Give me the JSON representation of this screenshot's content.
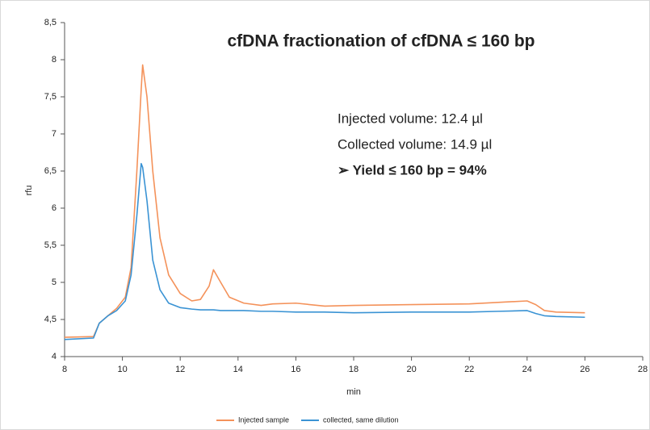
{
  "chart_data": {
    "type": "line",
    "title": "cfDNA fractionation of cfDNA ≤ 160 bp",
    "annotations": [
      "Injected volume: 12.4 µl",
      "Collected volume: 14.9 µl",
      "➢ Yield ≤ 160 bp = 94%"
    ],
    "x_label": "min",
    "y_label": "rfu",
    "x": [
      8,
      9,
      9.2,
      9.5,
      9.8,
      10.1,
      10.3,
      10.5,
      10.65,
      10.7,
      10.85,
      11.05,
      11.3,
      11.6,
      12,
      12.4,
      12.7,
      13,
      13.15,
      13.4,
      13.7,
      14.2,
      14.8,
      15.2,
      16,
      17,
      18,
      20,
      22,
      23,
      24,
      24.3,
      24.6,
      25,
      26
    ],
    "series": [
      {
        "name": "Injected sample",
        "color": "#f4925a",
        "values": [
          4.26,
          4.27,
          4.45,
          4.55,
          4.65,
          4.8,
          5.2,
          6.5,
          7.6,
          7.93,
          7.5,
          6.5,
          5.6,
          5.1,
          4.85,
          4.75,
          4.77,
          4.95,
          5.17,
          5.0,
          4.8,
          4.72,
          4.69,
          4.71,
          4.72,
          4.68,
          4.69,
          4.7,
          4.71,
          4.73,
          4.75,
          4.7,
          4.62,
          4.6,
          4.59
        ]
      },
      {
        "name": "collected, same dilution",
        "color": "#3a93d4",
        "values": [
          4.23,
          4.25,
          4.45,
          4.55,
          4.62,
          4.75,
          5.1,
          5.9,
          6.6,
          6.55,
          6.1,
          5.3,
          4.9,
          4.72,
          4.66,
          4.64,
          4.63,
          4.63,
          4.63,
          4.62,
          4.62,
          4.62,
          4.61,
          4.61,
          4.6,
          4.6,
          4.59,
          4.6,
          4.6,
          4.61,
          4.62,
          4.58,
          4.55,
          4.54,
          4.53
        ]
      }
    ],
    "xlim": [
      8,
      28
    ],
    "xticks": [
      8,
      10,
      12,
      14,
      16,
      18,
      20,
      22,
      24,
      26,
      28
    ],
    "ylim": [
      4,
      8.5
    ],
    "yticks": [
      4,
      {
        "value": 4.5,
        "label": "4,5"
      },
      5,
      {
        "value": 5.5,
        "label": "5,5"
      },
      6,
      {
        "value": 6.5,
        "label": "6,5"
      },
      7,
      {
        "value": 7.5,
        "label": "7,5"
      },
      8,
      {
        "value": 8.5,
        "label": "8,5"
      }
    ],
    "grid": false,
    "legend": "bottom"
  }
}
